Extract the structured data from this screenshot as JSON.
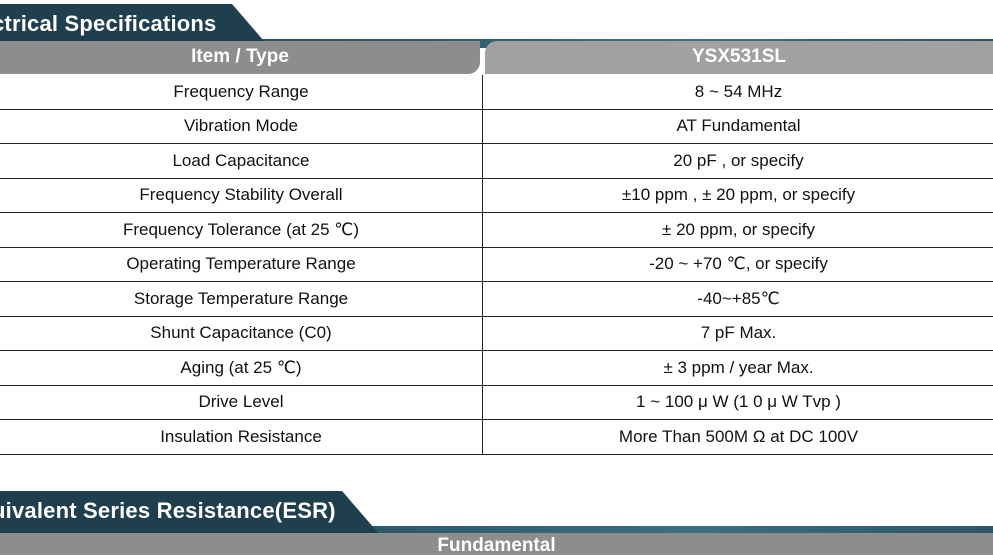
{
  "sections": {
    "electrical_title": "ctrical Specifications",
    "esr_title": "uivalent Series Resistance(ESR)"
  },
  "spec_table": {
    "header_item": "Item / Type",
    "header_type": "YSX531SL",
    "rows": [
      {
        "item": "Frequency Range",
        "value": "8 ~ 54 MHz"
      },
      {
        "item": "Vibration  Mode",
        "value": "AT  Fundamental"
      },
      {
        "item": "Load Capacitance",
        "value": "20  pF , or specify"
      },
      {
        "item": "Frequency Stability Overall",
        "value": "±10 ppm , ±  20 ppm, or specify"
      },
      {
        "item": "Frequency Tolerance (at 25 ℃)",
        "value": "±  20 ppm, or specify"
      },
      {
        "item": "Operating Temperature Range",
        "value": "-20 ~ +70 ℃, or specify"
      },
      {
        "item": "Storage Temperature Range",
        "value": "-40~+85℃"
      },
      {
        "item": "Shunt Capacitance (C0)",
        "value": "7 pF Max."
      },
      {
        "item": "Aging (at 25 ℃)",
        "value": "±  3 ppm / year Max."
      },
      {
        "item": "Drive Level",
        "value": "1 ~ 100  μ W (1  0  μ W Tvp )"
      },
      {
        "item": "Insulation  Resistance",
        "value": "More Than 500M Ω   at DC 100V"
      }
    ]
  },
  "esr_table": {
    "header": "Fundamental"
  },
  "colors": {
    "banner_dark": "#1f3f4e",
    "header_gray_left": "#8d8d8d",
    "header_gray_right": "#a1a1a1"
  }
}
